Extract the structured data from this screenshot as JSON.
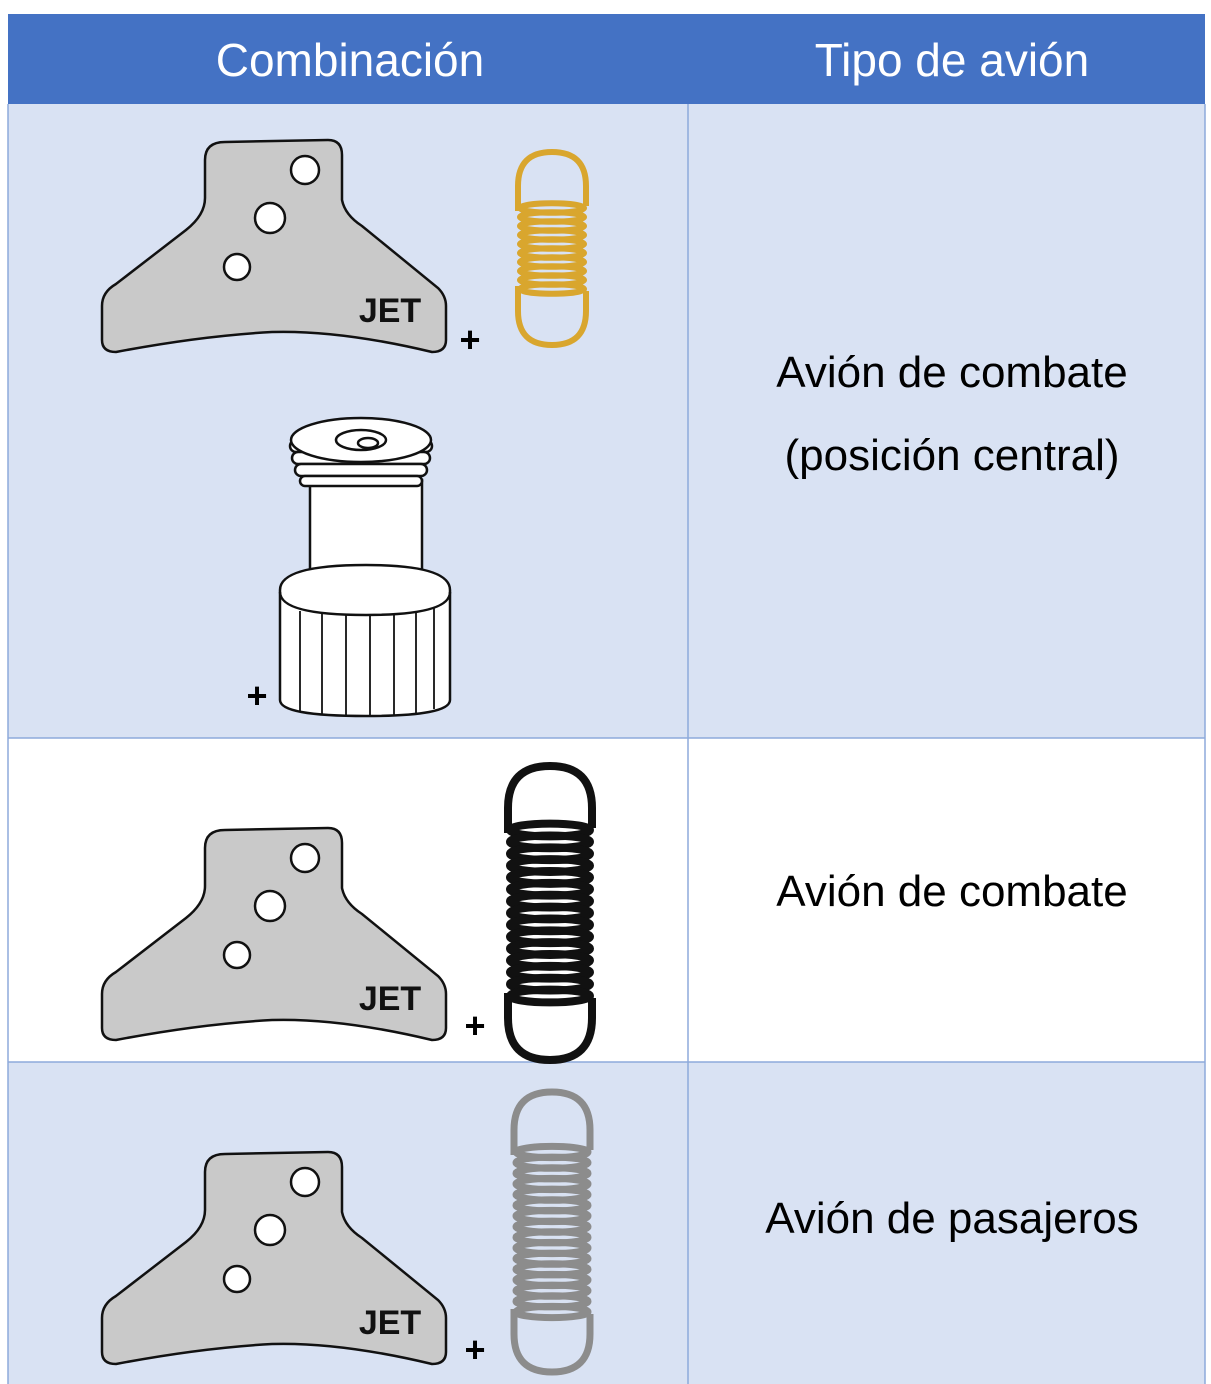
{
  "table": {
    "header": [
      "Combinación",
      "Tipo de avión"
    ],
    "rows": [
      {
        "plate_label": "JET",
        "plus": [
          "+",
          "+"
        ],
        "type": [
          "Avión de combate",
          "(posición central)"
        ]
      },
      {
        "plate_label": "JET",
        "plus": [
          "+"
        ],
        "type": [
          "Avión de combate"
        ]
      },
      {
        "plate_label": "JET",
        "plus": [
          "+"
        ],
        "type": [
          "Avión de pasajeros"
        ]
      }
    ]
  }
}
